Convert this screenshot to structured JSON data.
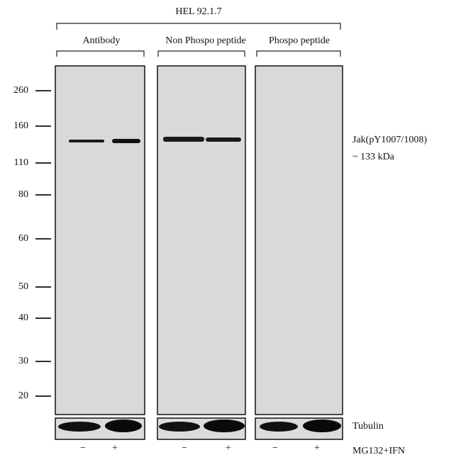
{
  "header": {
    "title": "HEL 92.1.7"
  },
  "groups": [
    "Antibody",
    "Non Phospo peptide",
    "Phospo peptide"
  ],
  "markers": [
    260,
    160,
    110,
    80,
    60,
    50,
    40,
    30,
    20
  ],
  "band_label": {
    "name": "Jak(pY1007/1008)",
    "size": "~ 133 kDa"
  },
  "loading_control": "Tubulin",
  "treatment": {
    "label": "MG132+IFN",
    "lanes": [
      "−",
      "+",
      "−",
      "+",
      "−",
      "+"
    ]
  }
}
